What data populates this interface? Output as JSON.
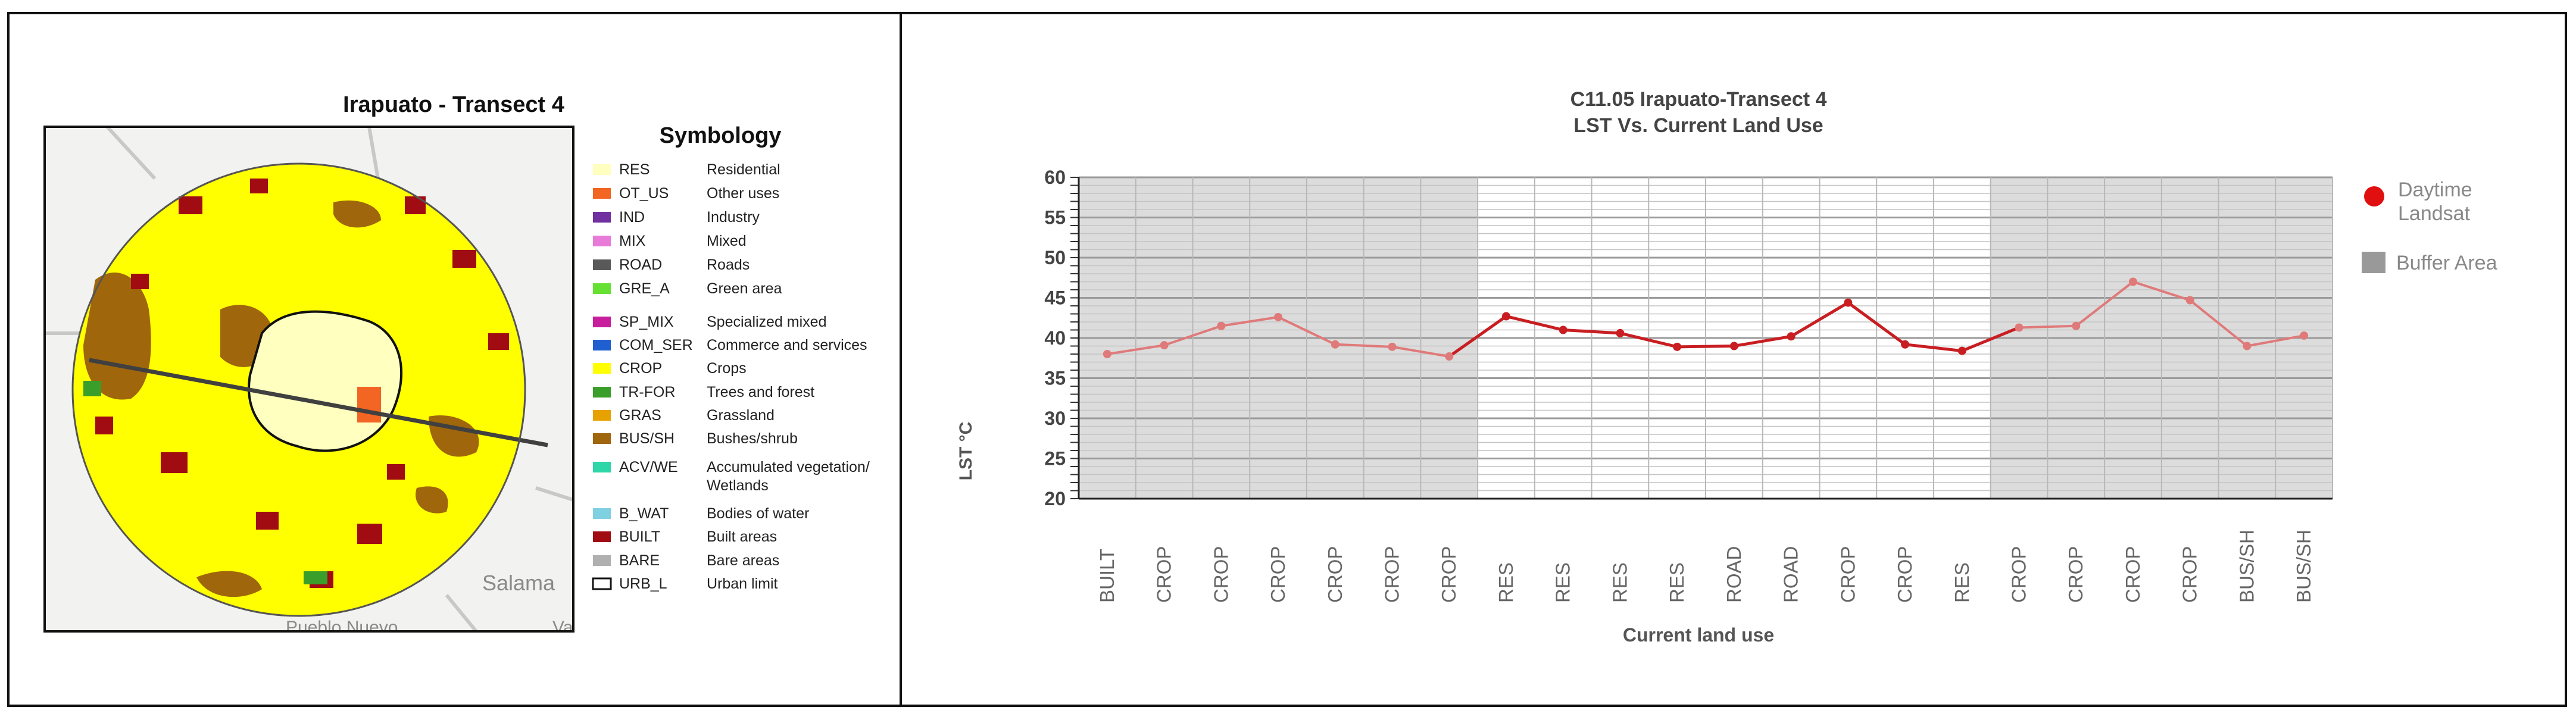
{
  "map_panel": {
    "title": "Irapuato - Transect 4",
    "basemap_labels": [
      "Salama",
      "Pueblo Nuevo",
      "Val"
    ],
    "symbology": {
      "title": "Symbology",
      "items": [
        {
          "code": "RES",
          "label": "Residential",
          "color": "#FFFFC0"
        },
        {
          "code": "OT_US",
          "label": "Other uses",
          "color": "#F26522"
        },
        {
          "code": "IND",
          "label": "Industry",
          "color": "#7030A0"
        },
        {
          "code": "MIX",
          "label": "Mixed",
          "color": "#E87AD8"
        },
        {
          "code": "ROAD",
          "label": "Roads",
          "color": "#595959"
        },
        {
          "code": "GRE_A",
          "label": "Green area",
          "color": "#66E033"
        },
        {
          "code": "SP_MIX",
          "label": "Specialized mixed",
          "color": "#C81E9E"
        },
        {
          "code": "COM_SER",
          "label": "Commerce and services",
          "color": "#1F5FD0"
        },
        {
          "code": "CROP",
          "label": "Crops",
          "color": "#FFFF00"
        },
        {
          "code": "TR-FOR",
          "label": "Trees and forest",
          "color": "#3A9E2A"
        },
        {
          "code": "GRAS",
          "label": "Grassland",
          "color": "#E8A200"
        },
        {
          "code": "BUS/SH",
          "label": "Bushes/shrub",
          "color": "#A0660C"
        },
        {
          "code": "ACV/WE",
          "label": "Accumulated vegetation/",
          "label2": "Wetlands",
          "color": "#2ED6A8"
        },
        {
          "code": "B_WAT",
          "label": "Bodies of water",
          "color": "#7FD0E0"
        },
        {
          "code": "BUILT",
          "label": "Built areas",
          "color": "#A00C12"
        },
        {
          "code": "BARE",
          "label": "Bare areas",
          "color": "#B0B0B0"
        },
        {
          "code": "URB_L",
          "label": "Urban limit",
          "color": "#FFFFFF"
        }
      ]
    }
  },
  "chart_data": {
    "type": "line",
    "title": "C11.05 Irapuato-Transect 4",
    "subtitle": "LST Vs. Current Land Use",
    "xlabel": "Current land use",
    "ylabel": "LST °C",
    "ylim": [
      20,
      60
    ],
    "yticks": [
      20,
      25,
      30,
      35,
      40,
      45,
      50,
      55,
      60
    ],
    "grid": true,
    "legend_position": "right",
    "categories": [
      "BUILT",
      "CROP",
      "CROP",
      "CROP",
      "CROP",
      "CROP",
      "CROP",
      "RES",
      "RES",
      "RES",
      "RES",
      "ROAD",
      "ROAD",
      "CROP",
      "CROP",
      "RES",
      "CROP",
      "CROP",
      "CROP",
      "CROP",
      "BUS/SH",
      "BUS/SH"
    ],
    "series": [
      {
        "name": "Daytime Landsat",
        "values": [
          38.0,
          39.1,
          41.5,
          42.6,
          39.2,
          38.9,
          37.7,
          42.7,
          41.0,
          40.6,
          38.9,
          39.0,
          40.2,
          44.4,
          39.2,
          38.4,
          41.3,
          41.5,
          47.0,
          44.7,
          39.0,
          40.3
        ],
        "color": "#D0282C"
      }
    ],
    "buffer_area": {
      "name": "Buffer Area",
      "ranges": [
        [
          0,
          6
        ],
        [
          16,
          21
        ]
      ],
      "color": "#DCDCDC"
    }
  }
}
